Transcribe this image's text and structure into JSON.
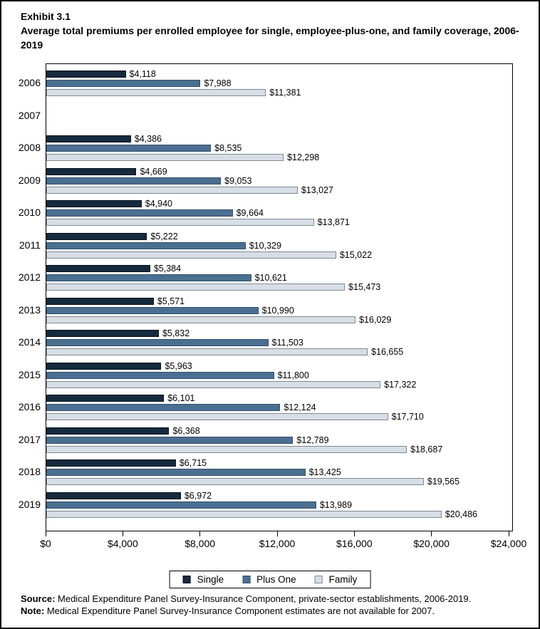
{
  "chart_data": {
    "type": "bar",
    "orientation": "horizontal",
    "title": "Exhibit 3.1",
    "subtitle": "Average total premiums per enrolled employee for single, employee-plus-one, and family coverage, 2006-2019",
    "categories": [
      "2006",
      "2007",
      "2008",
      "2009",
      "2010",
      "2011",
      "2012",
      "2013",
      "2014",
      "2015",
      "2016",
      "2017",
      "2018",
      "2019"
    ],
    "series": [
      {
        "name": "Single",
        "color": "#152A3E",
        "border_color": "#060f18",
        "values": [
          4118,
          null,
          4386,
          4669,
          4940,
          5222,
          5384,
          5571,
          5832,
          5963,
          6101,
          6368,
          6715,
          6972
        ]
      },
      {
        "name": "Plus One",
        "color": "#4A6F91",
        "border_color": "#33506b",
        "values": [
          7988,
          null,
          8535,
          9053,
          9664,
          10329,
          10621,
          10990,
          11503,
          11800,
          12124,
          12789,
          13425,
          13989
        ]
      },
      {
        "name": "Family",
        "color": "#D8DEE5",
        "border_color": "#7f8a94",
        "values": [
          11381,
          null,
          12298,
          13027,
          13871,
          15022,
          15473,
          16029,
          16655,
          17322,
          17710,
          18687,
          19565,
          20486
        ]
      }
    ],
    "xlim": [
      0,
      24000
    ],
    "xticks": [
      0,
      4000,
      8000,
      12000,
      16000,
      20000,
      24000
    ],
    "xtick_labels": [
      "$0",
      "$4,000",
      "$8,000",
      "$12,000",
      "$16,000",
      "$20,000",
      "$24,000"
    ],
    "value_label_prefix": "$",
    "grid": false,
    "legend_position": "bottom",
    "plot_background": "#ffffff",
    "frame_color": "#000000"
  },
  "footer": {
    "source_label": "Source:",
    "source_text": " Medical Expenditure Panel Survey-Insurance Component, private-sector establishments, 2006-2019.",
    "note_label": "Note:",
    "note_text": " Medical Expenditure Panel Survey-Insurance Component estimates are not available for 2007."
  }
}
